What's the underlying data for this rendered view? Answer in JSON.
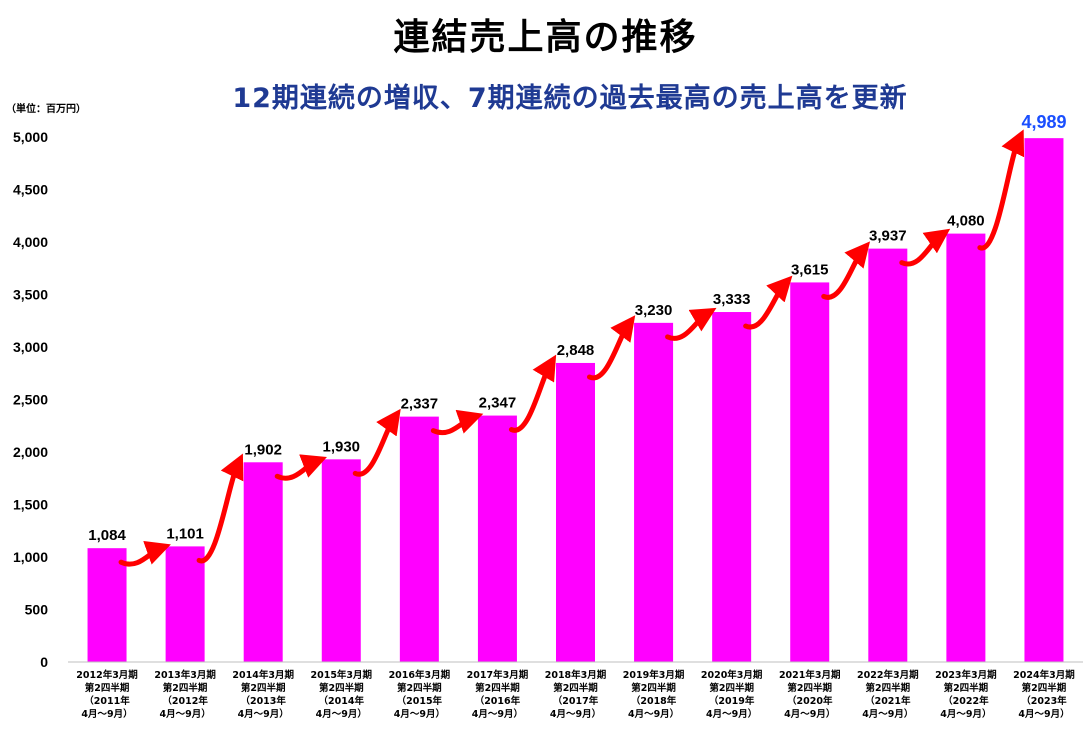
{
  "title": "連結売上高の推移",
  "subtitle": "12期連続の増収、7期連続の過去最高の売上高を更新",
  "unit_label": "（単位：百万円）",
  "colors": {
    "bar": "#ff00ff",
    "arrow": "#ff0000",
    "highlight_label": "#1a4fff",
    "subtitle": "#1f3a93"
  },
  "chart_data": {
    "type": "bar",
    "title": "連結売上高の推移",
    "subtitle": "12期連続の増収、7期連続の過去最高の売上高を更新",
    "ylabel": "（単位：百万円）",
    "ylim": [
      0,
      5000
    ],
    "yticks": [
      "0",
      "500",
      "1,000",
      "1,500",
      "2,000",
      "2,500",
      "3,000",
      "3,500",
      "4,000",
      "4,500",
      "5,000"
    ],
    "ytick_values": [
      0,
      500,
      1000,
      1500,
      2000,
      2500,
      3000,
      3500,
      4000,
      4500,
      5000
    ],
    "grid": false,
    "categories": [
      [
        "2012年3月期",
        "第2四半期",
        "（2011年",
        "4月～9月）"
      ],
      [
        "2013年3月期",
        "第2四半期",
        "（2012年",
        "4月～9月）"
      ],
      [
        "2014年3月期",
        "第2四半期",
        "（2013年",
        "4月～9月）"
      ],
      [
        "2015年3月期",
        "第2四半期",
        "（2014年",
        "4月～9月）"
      ],
      [
        "2016年3月期",
        "第2四半期",
        "（2015年",
        "4月～9月）"
      ],
      [
        "2017年3月期",
        "第2四半期",
        "（2016年",
        "4月～9月）"
      ],
      [
        "2018年3月期",
        "第2四半期",
        "（2017年",
        "4月～9月）"
      ],
      [
        "2019年3月期",
        "第2四半期",
        "（2018年",
        "4月～9月）"
      ],
      [
        "2020年3月期",
        "第2四半期",
        "（2019年",
        "4月～9月）"
      ],
      [
        "2021年3月期",
        "第2四半期",
        "（2020年",
        "4月～9月）"
      ],
      [
        "2022年3月期",
        "第2四半期",
        "（2021年",
        "4月～9月）"
      ],
      [
        "2023年3月期",
        "第2四半期",
        "（2022年",
        "4月～9月）"
      ],
      [
        "2024年3月期",
        "第2四半期",
        "（2023年",
        "4月～9月）"
      ]
    ],
    "values": [
      1084,
      1101,
      1902,
      1930,
      2337,
      2347,
      2848,
      3230,
      3333,
      3615,
      3937,
      4080,
      4989
    ],
    "value_labels": [
      "1,084",
      "1,101",
      "1,902",
      "1,930",
      "2,337",
      "2,347",
      "2,848",
      "3,230",
      "3,333",
      "3,615",
      "3,937",
      "4,080",
      "4,989"
    ],
    "highlight_index": 12
  }
}
